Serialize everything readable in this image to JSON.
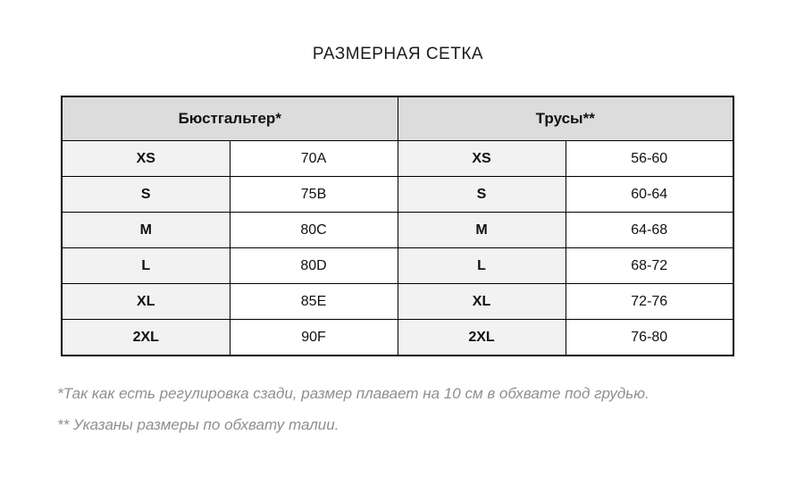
{
  "page": {
    "title": "РАЗМЕРНАЯ СЕТКА"
  },
  "table": {
    "headers": [
      "Бюстгальтер*",
      "Трусы**"
    ],
    "columns": [
      "size",
      "value",
      "size",
      "value"
    ],
    "rows": [
      {
        "cells": [
          "XS",
          "70A",
          "XS",
          "56-60"
        ]
      },
      {
        "cells": [
          "S",
          "75B",
          "S",
          "60-64"
        ]
      },
      {
        "cells": [
          "M",
          "80C",
          "M",
          "64-68"
        ]
      },
      {
        "cells": [
          "L",
          "80D",
          "L",
          "68-72"
        ]
      },
      {
        "cells": [
          "XL",
          "85E",
          "XL",
          "72-76"
        ]
      },
      {
        "cells": [
          "2XL",
          "90F",
          "2XL",
          "76-80"
        ]
      }
    ]
  },
  "footnotes": [
    "*Так как есть регулировка сзади, размер плавает на 10 см в обхвате под грудью.",
    "** Указаны размеры по обхвату талии."
  ],
  "colors": {
    "header_background": "#dcdcdc",
    "size_cell_background": "#f2f2f2",
    "border": "#000000",
    "footnote_text": "#8f8f8f",
    "title_text": "#1c1c1c"
  }
}
